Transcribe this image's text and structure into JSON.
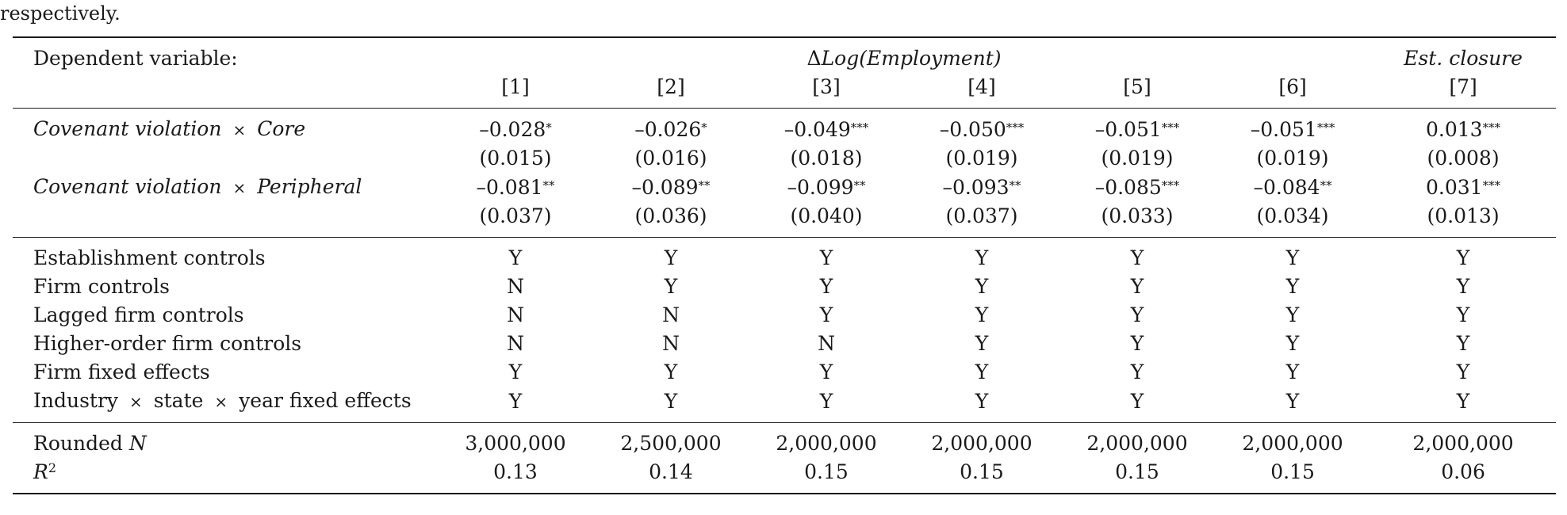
{
  "lead_text": "respectively.",
  "header": {
    "dependent_label": "Dependent variable:",
    "dv_delta": "Δ",
    "dv_main": "Log(Employment)",
    "dv_closure": "Est. closure",
    "columns": [
      "[1]",
      "[2]",
      "[3]",
      "[4]",
      "[5]",
      "[6]",
      "[7]"
    ]
  },
  "coef_rows": [
    {
      "label_a": "Covenant violation",
      "times": "×",
      "label_b": "Core",
      "estimates": [
        "–0.028",
        "–0.026",
        "–0.049",
        "–0.050",
        "–0.051",
        "–0.051",
        "0.013"
      ],
      "stars": [
        "*",
        "*",
        "***",
        "***",
        "***",
        "***",
        "***"
      ],
      "ses": [
        "(0.015)",
        "(0.016)",
        "(0.018)",
        "(0.019)",
        "(0.019)",
        "(0.019)",
        "(0.008)"
      ]
    },
    {
      "label_a": "Covenant violation",
      "times": "×",
      "label_b": "Peripheral",
      "estimates": [
        "–0.081",
        "–0.089",
        "–0.099",
        "–0.093",
        "–0.085",
        "–0.084",
        "0.031"
      ],
      "stars": [
        "**",
        "**",
        "**",
        "**",
        "***",
        "**",
        "***"
      ],
      "ses": [
        "(0.037)",
        "(0.036)",
        "(0.040)",
        "(0.037)",
        "(0.033)",
        "(0.034)",
        "(0.013)"
      ]
    }
  ],
  "control_rows": [
    {
      "label": "Establishment controls",
      "values": [
        "Y",
        "Y",
        "Y",
        "Y",
        "Y",
        "Y",
        "Y"
      ]
    },
    {
      "label": "Firm controls",
      "values": [
        "N",
        "Y",
        "Y",
        "Y",
        "Y",
        "Y",
        "Y"
      ]
    },
    {
      "label": "Lagged firm controls",
      "values": [
        "N",
        "N",
        "Y",
        "Y",
        "Y",
        "Y",
        "Y"
      ]
    },
    {
      "label": "Higher-order firm controls",
      "values": [
        "N",
        "N",
        "N",
        "Y",
        "Y",
        "Y",
        "Y"
      ]
    },
    {
      "label": "Firm fixed effects",
      "values": [
        "Y",
        "Y",
        "Y",
        "Y",
        "Y",
        "Y",
        "Y"
      ]
    },
    {
      "label_a": "Industry",
      "times": "×",
      "label_b": "state",
      "times2": "×",
      "label_c": "year fixed effects",
      "values": [
        "Y",
        "Y",
        "Y",
        "Y",
        "Y",
        "Y",
        "Y"
      ]
    }
  ],
  "stats": {
    "n_label_prefix": "Rounded",
    "n_label_var": "N",
    "n_values": [
      "3,000,000",
      "2,500,000",
      "2,000,000",
      "2,000,000",
      "2,000,000",
      "2,000,000",
      "2,000,000"
    ],
    "r2_label_var": "R",
    "r2_label_power": "2",
    "r2_values": [
      "0.13",
      "0.14",
      "0.15",
      "0.15",
      "0.15",
      "0.15",
      "0.06"
    ]
  }
}
